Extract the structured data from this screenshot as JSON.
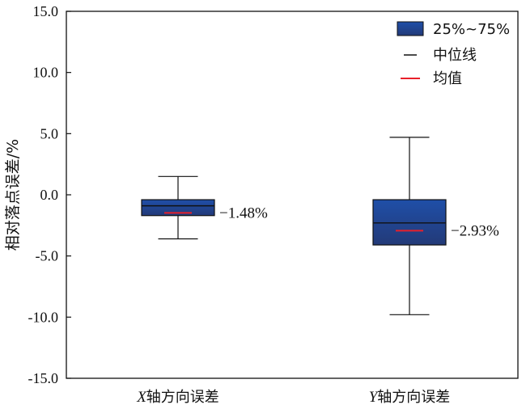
{
  "chart_data": {
    "type": "boxplot",
    "ylabel": "相对落点误差/%",
    "ylim": [
      -15,
      15
    ],
    "yticks": [
      -15,
      -10,
      -5,
      0,
      5,
      10,
      15
    ],
    "ytick_labels": [
      "-15.0",
      "-10.0",
      "-5.0",
      "0.0",
      "5.0",
      "10.0",
      "15.0"
    ],
    "categories": [
      {
        "italic": "X",
        "rest": "轴方向误差"
      },
      {
        "italic": "Y",
        "rest": "轴方向误差"
      }
    ],
    "boxes": [
      {
        "whisker_low": -3.6,
        "q1": -1.7,
        "median": -0.9,
        "mean": -1.48,
        "q3": -0.4,
        "whisker_high": 1.5,
        "mean_label": "−1.48%"
      },
      {
        "whisker_low": -9.8,
        "q1": -4.1,
        "median": -2.3,
        "mean": -2.93,
        "q3": -0.4,
        "whisker_high": 4.7,
        "mean_label": "−2.93%"
      }
    ],
    "legend": {
      "placement": "top-right",
      "items": [
        {
          "kind": "box",
          "label": "25%~75%"
        },
        {
          "kind": "median",
          "label": "中位线"
        },
        {
          "kind": "mean",
          "label": "均值"
        }
      ]
    },
    "colors": {
      "box_top": "#1f4fa8",
      "box_bottom": "#233a78",
      "median": "#111111",
      "mean": "#e8202a",
      "axis": "#111111"
    }
  }
}
